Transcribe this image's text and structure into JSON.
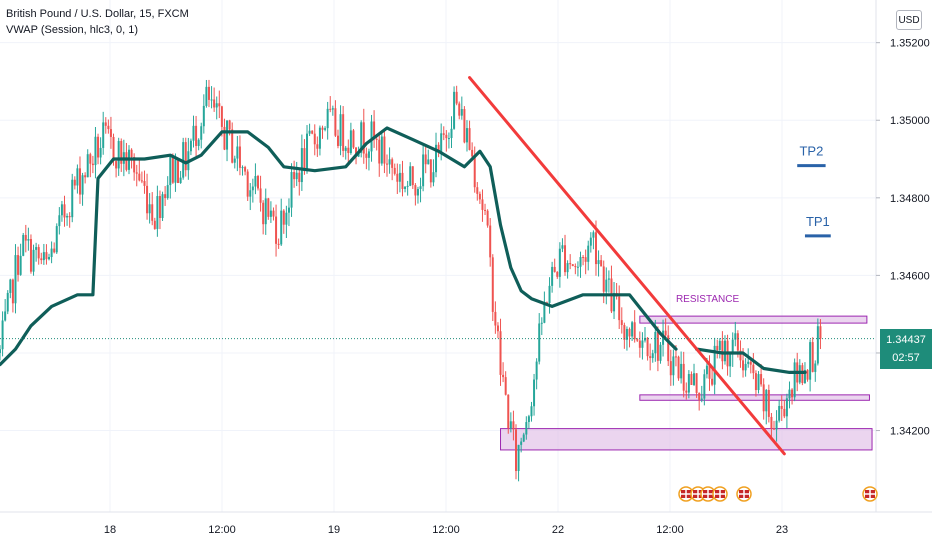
{
  "header": {
    "symbol_line": "British Pound / U.S. Dollar, 15, FXCM",
    "indicator_line": "VWAP (Session, hlc3, 0, 1)"
  },
  "currency_button": "USD",
  "price_tag": {
    "price": "1.34437",
    "countdown": "02:57"
  },
  "colors": {
    "up": "#26a69a",
    "down": "#ef5350",
    "vwap": "#0f5e59",
    "trendline": "#f23b3b",
    "zone_fill": "#e1bee7",
    "zone_border": "#9c27b0",
    "tp": "#2962a8"
  },
  "chart_data": {
    "type": "candlestick",
    "y_ticks": [
      1.352,
      1.35,
      1.348,
      1.346,
      1.344,
      1.342
    ],
    "y_tick_labels": [
      "1.35200",
      "1.35000",
      "1.34800",
      "1.34600",
      "1.34400",
      "1.34200"
    ],
    "ylim": [
      1.3399,
      1.3531
    ],
    "x_tick_labels": [
      "18",
      "12:00",
      "19",
      "12:00",
      "22",
      "12:00",
      "23"
    ],
    "current_price": 1.34437,
    "ohlc_keypoints": [
      [
        0,
        1.344
      ],
      [
        8,
        1.3468
      ],
      [
        18,
        1.3462
      ],
      [
        28,
        1.3482
      ],
      [
        40,
        1.3495
      ],
      [
        52,
        1.3488
      ],
      [
        60,
        1.3476
      ],
      [
        66,
        1.3487
      ],
      [
        72,
        1.349
      ],
      [
        80,
        1.3505
      ],
      [
        90,
        1.3493
      ],
      [
        100,
        1.348
      ],
      [
        108,
        1.3472
      ],
      [
        116,
        1.3488
      ],
      [
        126,
        1.35
      ],
      [
        134,
        1.3496
      ],
      [
        144,
        1.3495
      ],
      [
        152,
        1.3488
      ],
      [
        158,
        1.3483
      ],
      [
        164,
        1.3487
      ],
      [
        170,
        1.349
      ],
      [
        176,
        1.3505
      ],
      [
        182,
        1.3494
      ],
      [
        188,
        1.3475
      ],
      [
        194,
        1.3436
      ],
      [
        200,
        1.3412
      ],
      [
        206,
        1.343
      ],
      [
        212,
        1.3456
      ],
      [
        218,
        1.3466
      ],
      [
        224,
        1.3462
      ],
      [
        230,
        1.347
      ],
      [
        236,
        1.3455
      ],
      [
        242,
        1.3447
      ],
      [
        250,
        1.3444
      ],
      [
        258,
        1.3441
      ],
      [
        266,
        1.3433
      ],
      [
        272,
        1.3431
      ],
      [
        280,
        1.3441
      ],
      [
        286,
        1.3441
      ],
      [
        294,
        1.343
      ],
      [
        300,
        1.3421
      ],
      [
        306,
        1.3431
      ],
      [
        312,
        1.3437
      ],
      [
        318,
        1.3443
      ]
    ],
    "vwap_segments": [
      [
        [
          0,
          1.3437
        ],
        [
          6,
          1.3441
        ],
        [
          12,
          1.3447
        ],
        [
          20,
          1.3452
        ],
        [
          30,
          1.3455
        ],
        [
          36,
          1.3455
        ],
        [
          38,
          1.3485
        ],
        [
          44,
          1.349
        ],
        [
          56,
          1.349
        ],
        [
          66,
          1.3491
        ],
        [
          72,
          1.3489
        ],
        [
          78,
          1.3491
        ],
        [
          86,
          1.3497
        ],
        [
          96,
          1.3497
        ],
        [
          104,
          1.3493
        ],
        [
          110,
          1.3488
        ],
        [
          122,
          1.3487
        ],
        [
          134,
          1.3488
        ],
        [
          142,
          1.3494
        ],
        [
          150,
          1.3498
        ],
        [
          160,
          1.3495
        ],
        [
          170,
          1.3492
        ],
        [
          180,
          1.3488
        ],
        [
          186,
          1.3492
        ],
        [
          190,
          1.3488
        ],
        [
          194,
          1.3473
        ],
        [
          198,
          1.3462
        ],
        [
          202,
          1.3456
        ],
        [
          206,
          1.3454
        ],
        [
          214,
          1.3452
        ],
        [
          226,
          1.3455
        ],
        [
          244,
          1.3455
        ],
        [
          250,
          1.345
        ],
        [
          256,
          1.3445
        ],
        [
          262,
          1.3441
        ]
      ],
      [
        [
          270,
          1.3441
        ],
        [
          280,
          1.344
        ],
        [
          288,
          1.344
        ],
        [
          296,
          1.3436
        ],
        [
          306,
          1.3435
        ],
        [
          312,
          1.3435
        ]
      ]
    ],
    "annotations": {
      "trendline": [
        [
          182,
          1.3511
        ],
        [
          304,
          1.3414
        ]
      ],
      "zones": [
        {
          "x": [
            248,
            336
          ],
          "y": [
            1.34477,
            1.34495
          ]
        },
        {
          "x": [
            248,
            337
          ],
          "y": [
            1.34278,
            1.34292
          ]
        },
        {
          "x": [
            194,
            338
          ],
          "y": [
            1.3415,
            1.34205
          ]
        }
      ],
      "resistance_label": "RESISTANCE",
      "tp": [
        {
          "label": "TP1",
          "x": [
            312,
            322
          ],
          "y": 1.34702
        },
        {
          "label": "TP2",
          "x": [
            309,
            320
          ],
          "y": 1.34883
        }
      ]
    }
  }
}
